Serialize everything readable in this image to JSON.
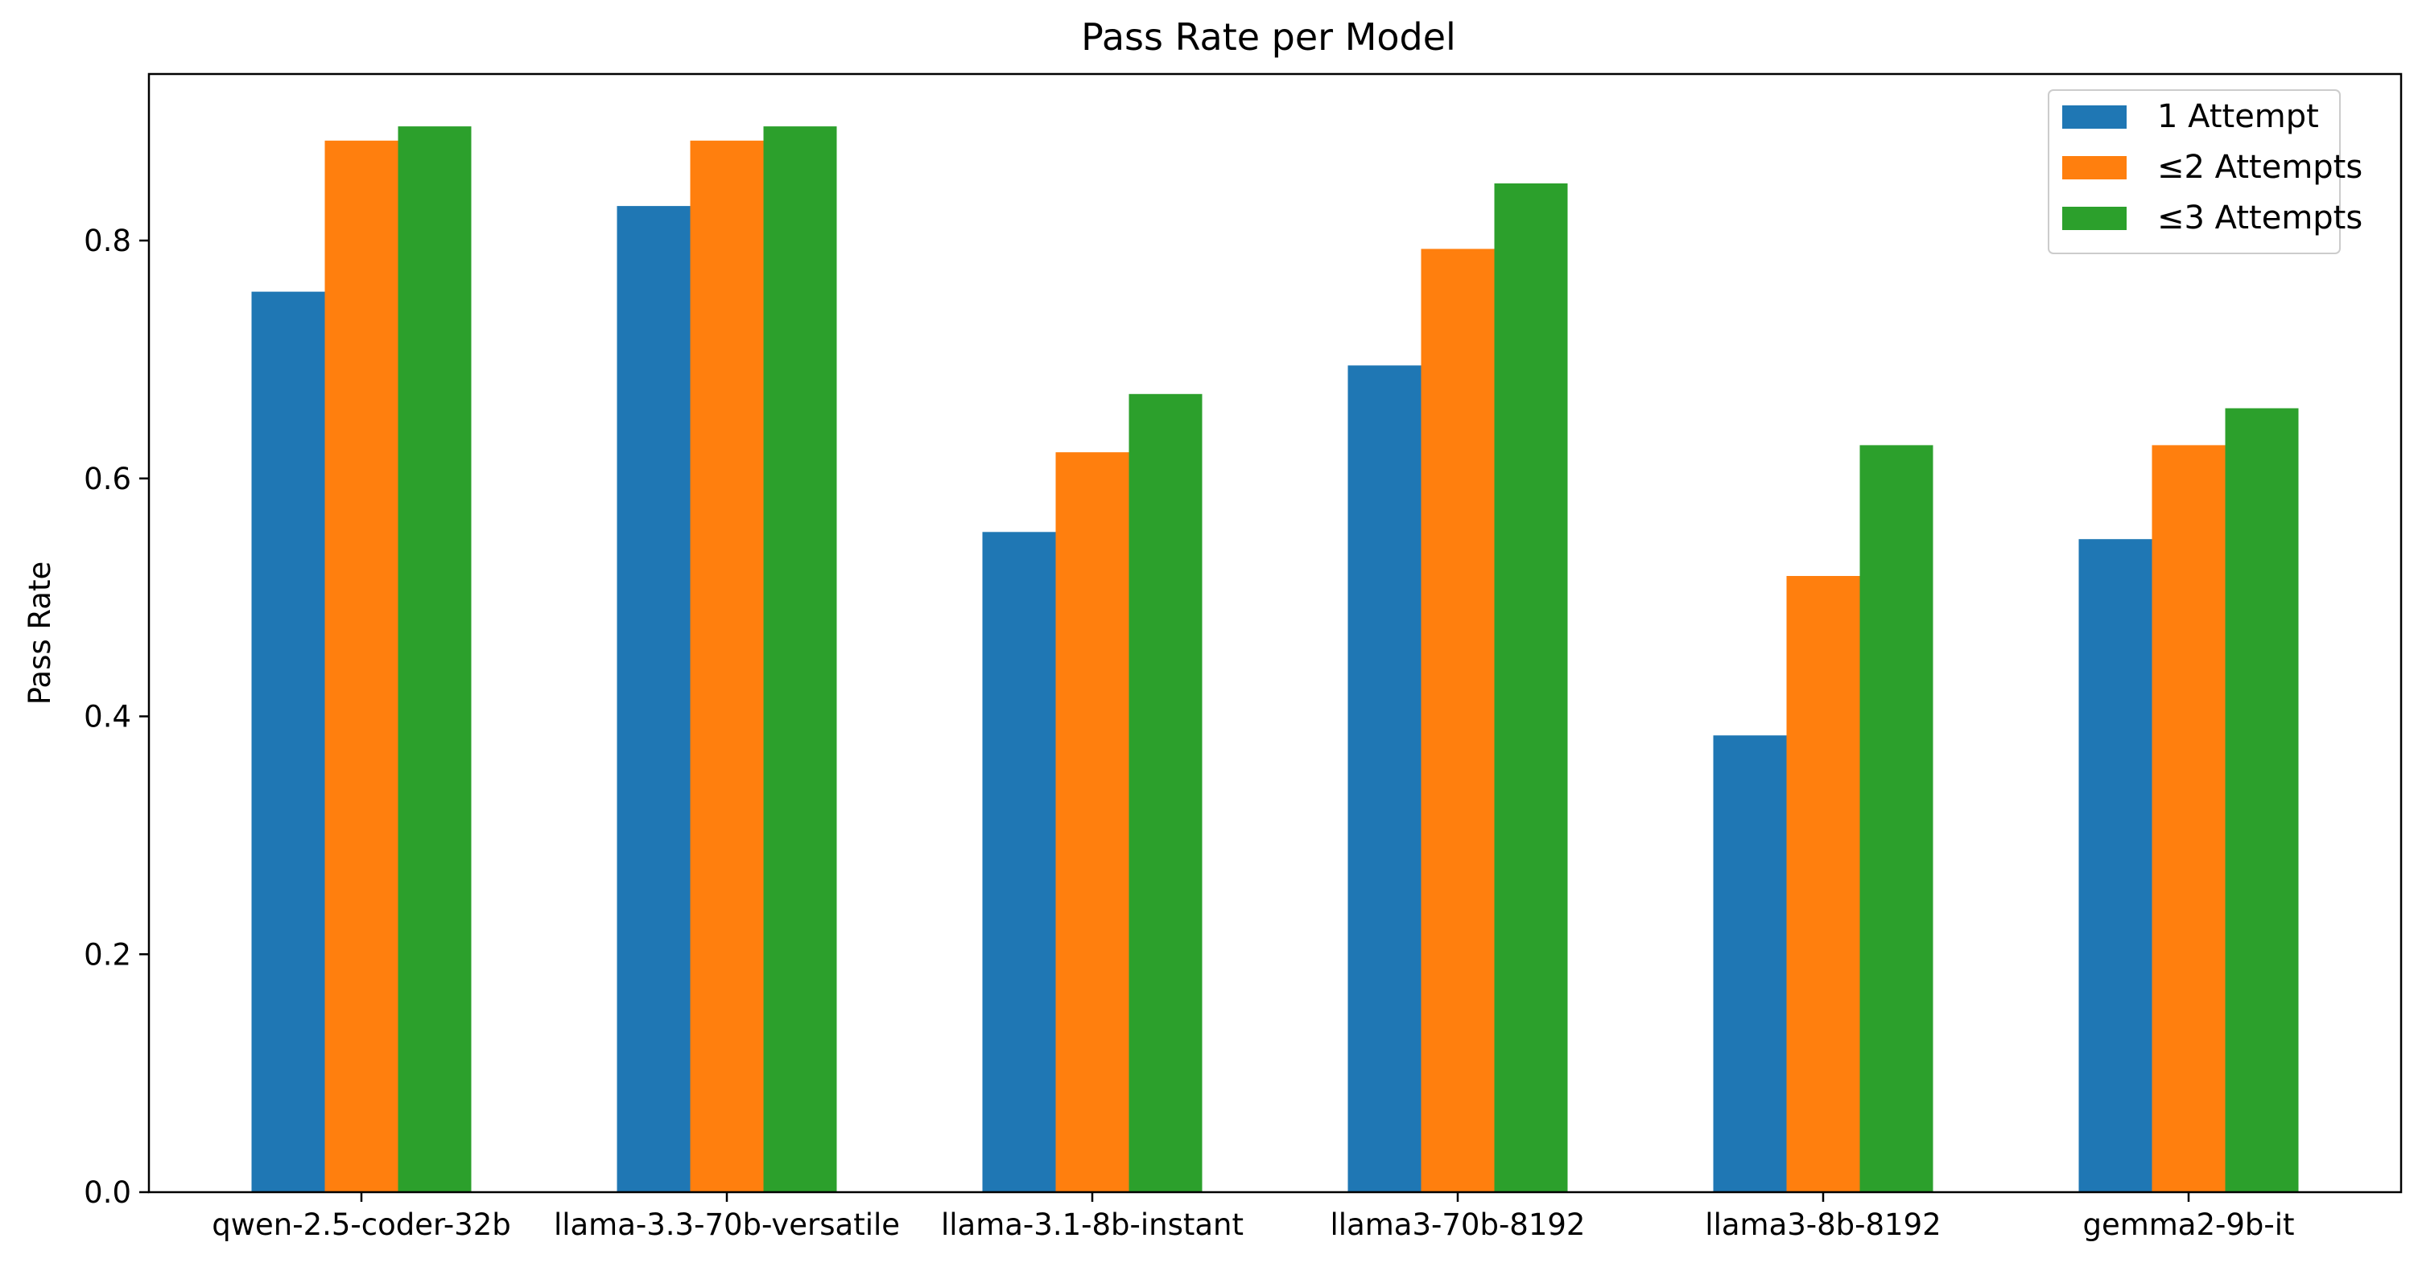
{
  "chart_data": {
    "type": "bar",
    "title": "Pass Rate per Model",
    "xlabel": "",
    "ylabel": "Pass Rate",
    "ylim": [
      0,
      0.94
    ],
    "yticks": [
      0.0,
      0.2,
      0.4,
      0.6,
      0.8
    ],
    "ytick_labels": [
      "0.0",
      "0.2",
      "0.4",
      "0.6",
      "0.8"
    ],
    "grid": false,
    "legend_position": "top-right",
    "categories": [
      "qwen-2.5-coder-32b",
      "llama-3.3-70b-versatile",
      "llama-3.1-8b-instant",
      "llama3-70b-8192",
      "llama3-8b-8192",
      "gemma2-9b-it"
    ],
    "series": [
      {
        "name": "1 Attempt",
        "color": "#1f77b4",
        "values": [
          0.757,
          0.829,
          0.555,
          0.695,
          0.384,
          0.549
        ]
      },
      {
        "name": "≤2 Attempts",
        "color": "#ff7f0e",
        "values": [
          0.884,
          0.884,
          0.622,
          0.793,
          0.518,
          0.628
        ]
      },
      {
        "name": "≤3 Attempts",
        "color": "#2ca02c",
        "values": [
          0.896,
          0.896,
          0.671,
          0.848,
          0.628,
          0.659
        ]
      }
    ]
  }
}
